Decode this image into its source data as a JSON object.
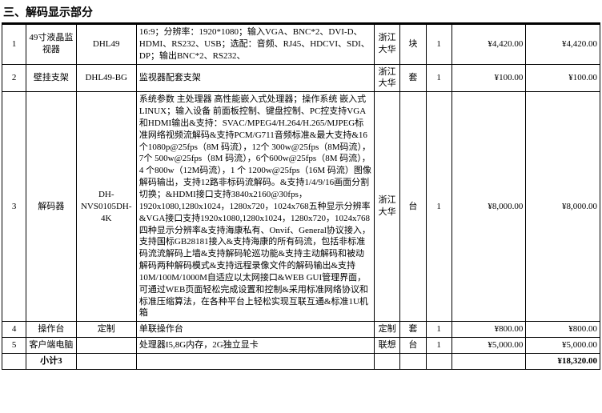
{
  "section_title": "三、解码显示部分",
  "rows": [
    {
      "idx": "1",
      "name": "49寸液晶监视器",
      "model": "DHL49",
      "spec": "16:9；分辨率：1920*1080；输入VGA、BNC*2、DVI-D、HDMI、RS232、USB；选配：音频、RJ45、HDCVI、SDI、DP；输出BNC*2、RS232、",
      "brand": "浙江大华",
      "unit": "块",
      "qty": "1",
      "price": "¥4,420.00",
      "total": "¥4,420.00"
    },
    {
      "idx": "2",
      "name": "壁挂支架",
      "model": "DHL49-BG",
      "spec": "监视器配套支架",
      "brand": "浙江大华",
      "unit": "套",
      "qty": "1",
      "price": "¥100.00",
      "total": "¥100.00"
    },
    {
      "idx": "3",
      "name": "解码器",
      "model": "DH-NVS0105DH-4K",
      "spec": "系统参数 主处理器 高性能嵌入式处理器；操作系统 嵌入式LINUX；输入设备 前面板控制、键盘控制、PC控支持VGA和HDMI输出&支持：SVAC/MPEG4/H.264/H.265/MJPEG标准网络视频流解码&支持PCM/G711音频标准&最大支持&16 个1080p@25fps（8M 码流），12个 300w@25fps（8M码流），7个 500w@25fps（8M 码流），6个600w@25fps（8M 码流），4 个800w（12M码流），1 个 1200w@25fps（16M 码流）图像解码输出，支持12路非标码流解码。&支持1/4/9/16画面分割切换；&HDMI接口支持3840x2160@30fps，1920x1080,1280x1024，1280x720，1024x768五种显示分辨率&VGA接口支持1920x1080,1280x1024，1280x720，1024x768四种显示分辨率&支持海康私有、Onvif、General协议接入，支持国标GB28181接入&支持海康的所有码流，包括非标准码流流解码上墙&支持解码轮巡功能&支持主动解码和被动解码两种解码模式&支持远程录像文件的解码输出&支持10M/100M/1000M自适应以太网接口&WEB GUI管理界面，可通过WEB页面轻松完成设置和控制&采用标准网络协议和标准压缩算法，在各种平台上轻松实现互联互通&标准1U机箱",
      "brand": "浙江大华",
      "unit": "台",
      "qty": "1",
      "price": "¥8,000.00",
      "total": "¥8,000.00"
    },
    {
      "idx": "4",
      "name": "操作台",
      "model": "定制",
      "spec": "单联操作台",
      "brand": "定制",
      "unit": "套",
      "qty": "1",
      "price": "¥800.00",
      "total": "¥800.00"
    },
    {
      "idx": "5",
      "name": "客户端电脑",
      "model": "",
      "spec": "处理器I5,8G内存，2G独立显卡",
      "brand": "联想",
      "unit": "台",
      "qty": "1",
      "price": "¥5,000.00",
      "total": "¥5,000.00"
    }
  ],
  "subtotal_label": "小计3",
  "subtotal_value": "¥18,320.00"
}
